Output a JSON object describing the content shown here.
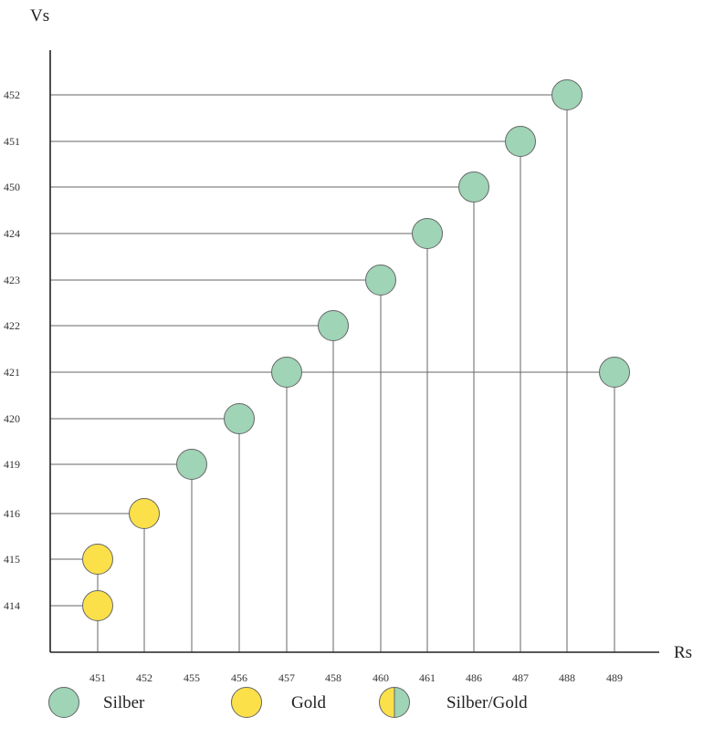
{
  "chart_data": {
    "type": "scatter",
    "title": "",
    "xlabel": "Rs",
    "ylabel": "Vs",
    "x_categories": [
      "451",
      "452",
      "455",
      "456",
      "457",
      "458",
      "460",
      "461",
      "486",
      "487",
      "488",
      "489"
    ],
    "y_categories": [
      "414",
      "415",
      "416",
      "419",
      "420",
      "421",
      "422",
      "423",
      "424",
      "450",
      "451",
      "452"
    ],
    "points": [
      {
        "x": "451",
        "y": "414",
        "material": "gold"
      },
      {
        "x": "451",
        "y": "415",
        "material": "gold"
      },
      {
        "x": "452",
        "y": "416",
        "material": "gold"
      },
      {
        "x": "455",
        "y": "419",
        "material": "silber"
      },
      {
        "x": "456",
        "y": "420",
        "material": "silber"
      },
      {
        "x": "457",
        "y": "421",
        "material": "silber"
      },
      {
        "x": "458",
        "y": "422",
        "material": "silber"
      },
      {
        "x": "460",
        "y": "423",
        "material": "silber"
      },
      {
        "x": "461",
        "y": "424",
        "material": "silber"
      },
      {
        "x": "486",
        "y": "450",
        "material": "silber"
      },
      {
        "x": "487",
        "y": "451",
        "material": "silber"
      },
      {
        "x": "488",
        "y": "452",
        "material": "silber"
      },
      {
        "x": "489",
        "y": "421",
        "material": "silber"
      }
    ],
    "legend": [
      {
        "key": "silber",
        "label": "Silber"
      },
      {
        "key": "gold",
        "label": "Gold"
      },
      {
        "key": "silber_gold",
        "label": "Silber/Gold"
      }
    ],
    "legend_position": "bottom",
    "colors": {
      "silber": "#9fd4b6",
      "gold": "#fbe04a",
      "outline": "#666666",
      "guide": "#666666",
      "axis": "#222222"
    },
    "grid": false
  }
}
